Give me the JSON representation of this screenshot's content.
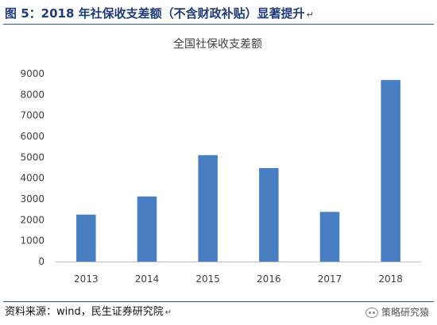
{
  "header": {
    "title": "图 5：2018 年社保收支差额（不含财政补贴）显著提升",
    "end_mark": "↵"
  },
  "footer": {
    "source": "资料来源：wind，民生证券研究院",
    "end_mark": "↵",
    "watermark": "策略研究猿"
  },
  "colors": {
    "bar": "#4a7ec2",
    "title": "#1f3b78",
    "rule": "#2e5597",
    "axis": "#bfbfbf",
    "text": "#404040"
  },
  "chart_data": {
    "type": "bar",
    "title": "全国社保收支差额",
    "xlabel": "",
    "ylabel": "",
    "categories": [
      "2013",
      "2014",
      "2015",
      "2016",
      "2017",
      "2018"
    ],
    "values": [
      2250,
      3120,
      5100,
      4480,
      2380,
      8700
    ],
    "ylim": [
      0,
      9000
    ],
    "yticks": [
      0,
      1000,
      2000,
      3000,
      4000,
      5000,
      6000,
      7000,
      8000,
      9000
    ],
    "grid": false,
    "legend": "none"
  }
}
